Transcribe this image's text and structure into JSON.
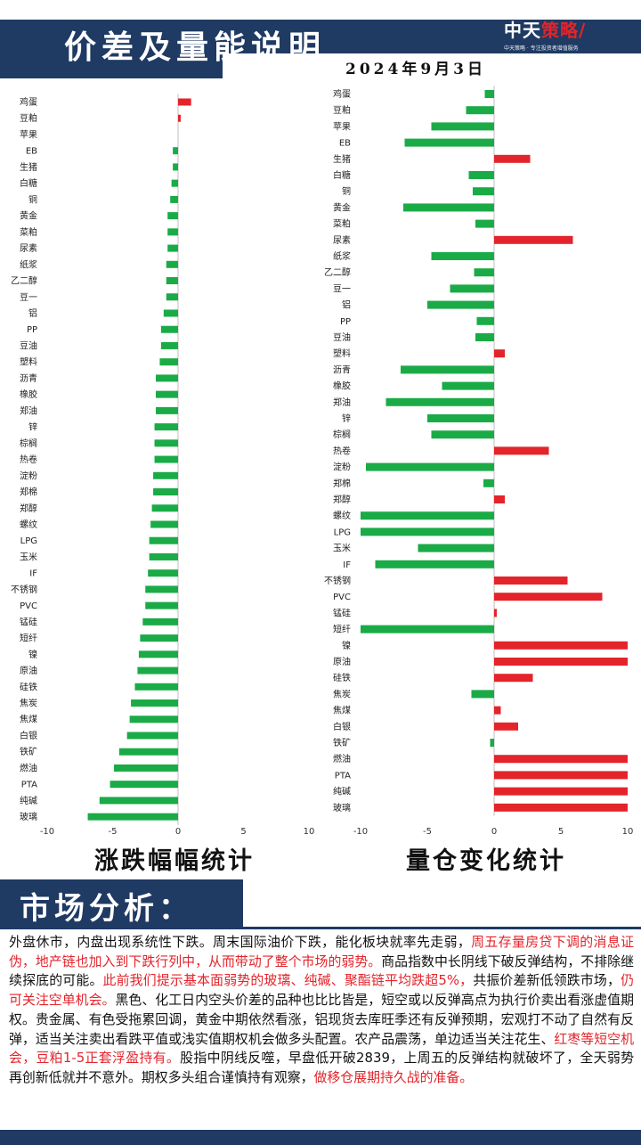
{
  "header": {
    "title": "价差及量能说明",
    "date": "2024年9月3日",
    "logo_text_a": "中天",
    "logo_text_b": "策略",
    "logo_sub": "中天策略 · 专注投资者增值服务"
  },
  "colors": {
    "up": "#e3242b",
    "down": "#1aab47",
    "navy": "#1f3a63"
  },
  "chart_data": [
    {
      "type": "bar",
      "orientation": "horizontal",
      "title": "涨跌幅幅统计",
      "categories": [
        "鸡蛋",
        "豆粕",
        "苹果",
        "EB",
        "生猪",
        "白糖",
        "铜",
        "黄金",
        "菜粕",
        "尿素",
        "纸浆",
        "乙二醇",
        "豆一",
        "铝",
        "PP",
        "豆油",
        "塑料",
        "沥青",
        "橡胶",
        "郑油",
        "锌",
        "棕榈",
        "热卷",
        "淀粉",
        "郑棉",
        "郑醇",
        "螺纹",
        "LPG",
        "玉米",
        "IF",
        "不锈钢",
        "PVC",
        "锰硅",
        "短纤",
        "镍",
        "原油",
        "硅铁",
        "焦炭",
        "焦煤",
        "白银",
        "铁矿",
        "燃油",
        "PTA",
        "纯碱",
        "玻璃"
      ],
      "values": [
        1.0,
        0.2,
        0.0,
        -0.4,
        -0.4,
        -0.5,
        -0.6,
        -0.8,
        -0.8,
        -0.8,
        -0.9,
        -0.9,
        -0.9,
        -1.1,
        -1.3,
        -1.3,
        -1.4,
        -1.7,
        -1.7,
        -1.7,
        -1.8,
        -1.8,
        -1.8,
        -1.9,
        -1.9,
        -2.0,
        -2.1,
        -2.2,
        -2.2,
        -2.3,
        -2.5,
        -2.5,
        -2.7,
        -2.9,
        -3.0,
        -3.1,
        -3.3,
        -3.6,
        -3.7,
        -3.9,
        -4.5,
        -4.9,
        -5.2,
        -6.0,
        -6.9
      ],
      "xlim": [
        -10,
        10
      ],
      "xticks": [
        -10,
        -5,
        0,
        5,
        10
      ]
    },
    {
      "type": "bar",
      "orientation": "horizontal",
      "title": "量仓变化统计",
      "categories": [
        "鸡蛋",
        "豆粕",
        "苹果",
        "EB",
        "生猪",
        "白糖",
        "铜",
        "黄金",
        "菜粕",
        "尿素",
        "纸浆",
        "乙二醇",
        "豆一",
        "铝",
        "PP",
        "豆油",
        "塑料",
        "沥青",
        "橡胶",
        "郑油",
        "锌",
        "棕榈",
        "热卷",
        "淀粉",
        "郑棉",
        "郑醇",
        "螺纹",
        "LPG",
        "玉米",
        "IF",
        "不锈钢",
        "PVC",
        "锰硅",
        "短纤",
        "镍",
        "原油",
        "硅铁",
        "焦炭",
        "焦煤",
        "白银",
        "铁矿",
        "燃油",
        "PTA",
        "纯碱",
        "玻璃"
      ],
      "values": [
        -0.7,
        -2.1,
        -4.7,
        -6.7,
        2.7,
        -1.9,
        -1.6,
        -6.8,
        -1.4,
        5.9,
        -4.7,
        -1.5,
        -3.3,
        -5.0,
        -1.3,
        -1.4,
        0.8,
        -7.0,
        -3.9,
        -8.1,
        -5.0,
        -4.7,
        4.1,
        -9.6,
        -0.8,
        0.8,
        -10,
        -10,
        -5.7,
        -8.9,
        5.5,
        8.1,
        0.2,
        -10,
        10,
        10,
        2.9,
        -1.7,
        0.5,
        1.8,
        -0.3,
        10,
        10,
        10,
        10
      ],
      "xlim": [
        -10,
        10
      ],
      "xticks": [
        -10,
        -5,
        0,
        5,
        10
      ]
    }
  ],
  "analysis": {
    "title": "市场分析：",
    "segments": [
      {
        "text": "外盘休市，内盘出现系统性下跌。周末国际油价下跌，能化板块就率先走弱，",
        "hl": false
      },
      {
        "text": "周五存量房贷下调的消息证伪，地产链也加入到下跌行列中，从而带动了整个市场的弱势。",
        "hl": true
      },
      {
        "text": "商品指数中长阴线下破反弹结构，不排除继续探底的可能。",
        "hl": false
      },
      {
        "text": "此前我们提示基本面弱势的玻璃、纯碱、聚酯链平均跌超5%，",
        "hl": true
      },
      {
        "text": "共振价差新低领跌市场，",
        "hl": false
      },
      {
        "text": "仍可关注空单机会。",
        "hl": true
      },
      {
        "text": "黑色、化工日内空头价差的品种也比比皆是，短空或以反弹高点为执行价卖出看涨虚值期权。贵金属、有色受拖累回调，黄金中期依然看涨，铝现货去库旺季还有反弹预期，宏观打不动了自然有反弹，适当关注卖出看跌平值或浅实值期权机会做多头配置。农产品震荡，单边适当关注花生、",
        "hl": false
      },
      {
        "text": "红枣等短空机会，",
        "hl": true
      },
      {
        "text": "",
        "hl": false
      },
      {
        "text": "豆粕1-5正套浮盈持有。",
        "hl": true
      },
      {
        "text": "股指中阴线反噬，早盘低开破2839，上周五的反弹结构就破坏了，全天弱势再创新低就并不意外。期权多头组合谨慎持有观察，",
        "hl": false
      },
      {
        "text": "做移仓展期持久战的准备。",
        "hl": true
      }
    ]
  }
}
